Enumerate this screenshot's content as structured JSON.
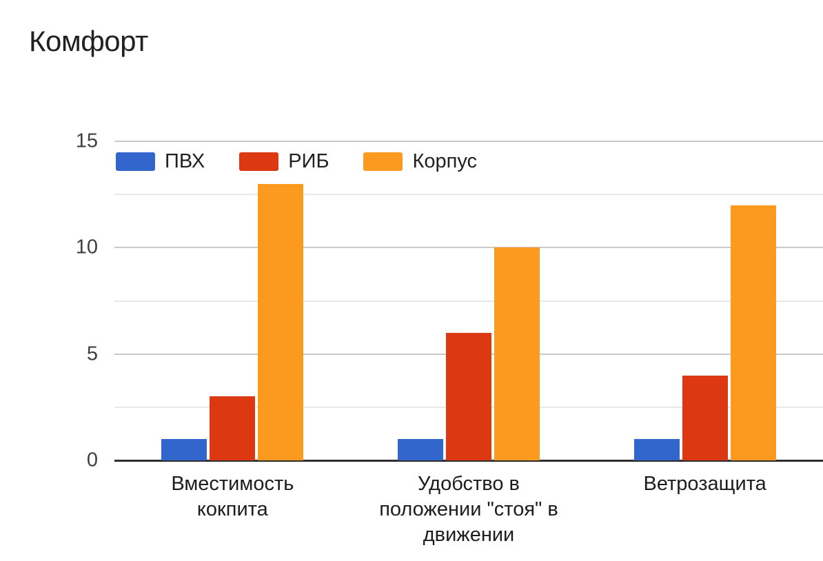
{
  "title": "Комфорт",
  "chart_data": {
    "type": "bar",
    "title": "Комфорт",
    "categories": [
      {
        "label": "Вместимость кокпита",
        "lines": [
          "Вместимость",
          "кокпита"
        ]
      },
      {
        "label": "Удобство в положении \"стоя\" в движении",
        "lines": [
          "Удобство в",
          "положении \"стоя\" в",
          "движении"
        ]
      },
      {
        "label": "Ветрозащита",
        "lines": [
          "Ветрозащита"
        ]
      }
    ],
    "series": [
      {
        "name": "ПВХ",
        "color": "#3366CC",
        "values": [
          1,
          1,
          1
        ]
      },
      {
        "name": "РИБ",
        "color": "#DC3912",
        "values": [
          3,
          6,
          4
        ]
      },
      {
        "name": "Корпус",
        "color": "#FB9A1E",
        "values": [
          13,
          10,
          12
        ]
      }
    ],
    "xlabel": "",
    "ylabel": "",
    "ylim": [
      0,
      15
    ],
    "yticks": [
      0,
      5,
      10,
      15
    ],
    "minor_gridlines": [
      2.5,
      7.5,
      12.5
    ],
    "grid": true,
    "legend_position": "top-left-inside"
  },
  "colors": {
    "background": "#ffffff",
    "title_text": "#212121",
    "ytick_text": "#404040",
    "category_text": "#1c1c1c",
    "major_gridline": "#c9c9c9",
    "minor_gridline": "#e8e8e8",
    "baseline": "#2e2e2e"
  }
}
